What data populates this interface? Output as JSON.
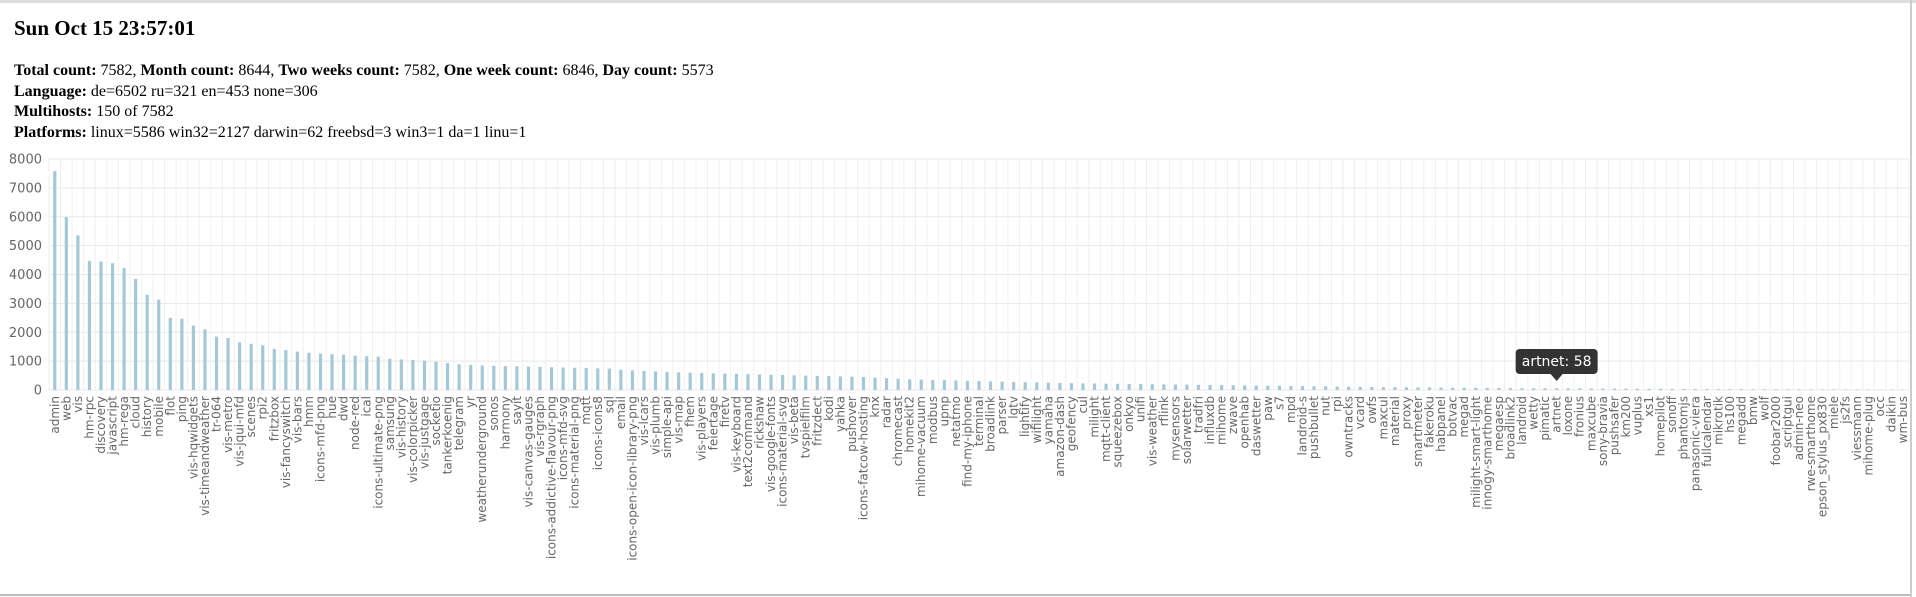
{
  "header": {
    "title": "Sun Oct 15 23:57:01",
    "lines": [
      [
        {
          "label": "Total count:",
          "text": " 7582, "
        },
        {
          "label": "Month count:",
          "text": " 8644, "
        },
        {
          "label": "Two weeks count:",
          "text": " 7582, "
        },
        {
          "label": "One week count:",
          "text": " 6846, "
        },
        {
          "label": "Day count:",
          "text": " 5573"
        }
      ],
      [
        {
          "label": "Language:",
          "text": " de=6502 ru=321 en=453 none=306"
        }
      ],
      [
        {
          "label": "Multihosts:",
          "text": " 150 of 7582"
        }
      ],
      [
        {
          "label": "Platforms:",
          "text": " linux=5586 win32=2127 darwin=62 freebsd=3 win3=1 da=1 linu=1"
        }
      ]
    ]
  },
  "chart_data": {
    "type": "bar",
    "color": "#a5c8d8",
    "grid": true,
    "ylim": [
      0,
      8000
    ],
    "yticks": [
      0,
      1000,
      2000,
      3000,
      4000,
      5000,
      6000,
      7000,
      8000
    ],
    "tooltip": "artnet: 58",
    "categories": [
      "admin",
      "web",
      "vis",
      "hm-rpc",
      "discovery",
      "javascript",
      "hm-rega",
      "cloud",
      "history",
      "mobile",
      "flot",
      "ping",
      "vis-hqwidgets",
      "vis-timeandweather",
      "tr-064",
      "vis-metro",
      "vis-jqui-mfd",
      "scenes",
      "rpi2",
      "fritzbox",
      "vis-fancyswitch",
      "vis-bars",
      "hmm",
      "icons-mfd-png",
      "hue",
      "dwd",
      "node-red",
      "ical",
      "icons-ultimate-png",
      "samsung",
      "vis-history",
      "vis-colorpicker",
      "vis-justgage",
      "socketio",
      "tankerkoenig",
      "telegram",
      "yr",
      "weatherunderground",
      "sonos",
      "harmony",
      "sayit",
      "vis-canvas-gauges",
      "vis-rgraph",
      "icons-addictive-flavour-png",
      "icons-mfd-svg",
      "icons-material-png",
      "mqtt",
      "icons-icons8",
      "sql",
      "email",
      "icons-open-icon-library-png",
      "vis-lcars",
      "vis-plumb",
      "simple-api",
      "vis-map",
      "fhem",
      "vis-players",
      "feiertage",
      "firetv",
      "vis-keyboard",
      "text2command",
      "rickshaw",
      "vis-google-fonts",
      "icons-material-svg",
      "vis-beta",
      "tvspielfilm",
      "fritzdect",
      "kodi",
      "yahka",
      "pushover",
      "icons-fatcow-hosting",
      "knx",
      "radar",
      "chromecast",
      "homekit2",
      "mihome-vacuum",
      "modbus",
      "upnp",
      "netatmo",
      "find-my-iphone",
      "terminal",
      "broadlink",
      "parser",
      "lgtv",
      "lightify",
      "wifilight",
      "yamaha",
      "amazon-dash",
      "geofency",
      "cul",
      "milight",
      "mqtt-client",
      "squeezebox",
      "onkyo",
      "unifi",
      "vis-weather",
      "rflink",
      "mysensors",
      "solarwetter",
      "tradfri",
      "influxdb",
      "mihome",
      "zwave",
      "openhab",
      "daswetter",
      "paw",
      "s7",
      "mpd",
      "landroid-s",
      "pushbullet",
      "nut",
      "rpi",
      "owntracks",
      "vcard",
      "owfs",
      "maxcul",
      "material",
      "proxy",
      "smartmeter",
      "fakeroku",
      "habpanel",
      "botvac",
      "megad",
      "milight-smart-light",
      "innogy-smarthome",
      "megaesp",
      "broadlink2",
      "landroid",
      "wetty",
      "pimatic",
      "artnet",
      "loxone",
      "fronius",
      "maxcube",
      "sony-bravia",
      "pushsafer",
      "km200",
      "vuplus",
      "xs1",
      "homepilot",
      "sonoff",
      "phantomjs",
      "panasonic-viera",
      "fullcalendar",
      "mikrotik",
      "hs100",
      "megadd",
      "bmw",
      "wolf",
      "foobar2000",
      "scriptgui",
      "admin-neo",
      "rwe-smarthome",
      "epson_stylus_px830",
      "miele",
      "js2fs",
      "viessmann",
      "mihome-plug",
      "occ",
      "daikin",
      "wm-bus"
    ],
    "values": [
      7582,
      5990,
      5360,
      4470,
      4450,
      4390,
      4230,
      3850,
      3300,
      3130,
      2500,
      2470,
      2230,
      2100,
      1850,
      1800,
      1650,
      1600,
      1550,
      1420,
      1380,
      1330,
      1290,
      1260,
      1240,
      1220,
      1190,
      1170,
      1150,
      1080,
      1060,
      1040,
      1020,
      980,
      930,
      890,
      870,
      850,
      840,
      830,
      820,
      810,
      800,
      790,
      780,
      770,
      760,
      750,
      740,
      700,
      680,
      660,
      640,
      620,
      610,
      600,
      590,
      580,
      570,
      560,
      550,
      540,
      530,
      520,
      510,
      500,
      490,
      480,
      470,
      460,
      450,
      430,
      410,
      390,
      370,
      360,
      350,
      340,
      330,
      320,
      310,
      300,
      290,
      280,
      270,
      260,
      250,
      240,
      235,
      230,
      225,
      220,
      215,
      210,
      205,
      200,
      195,
      190,
      185,
      180,
      175,
      170,
      165,
      160,
      155,
      150,
      145,
      140,
      135,
      130,
      125,
      120,
      115,
      110,
      105,
      100,
      97,
      94,
      91,
      88,
      85,
      82,
      79,
      76,
      73,
      70,
      67,
      64,
      61,
      60,
      58,
      56,
      54,
      52,
      50,
      48,
      46,
      44,
      42,
      40,
      38,
      36,
      34,
      32,
      30,
      29,
      28,
      27,
      26,
      25,
      24,
      23,
      22,
      21,
      20,
      19,
      18,
      17,
      16,
      15,
      14
    ]
  }
}
